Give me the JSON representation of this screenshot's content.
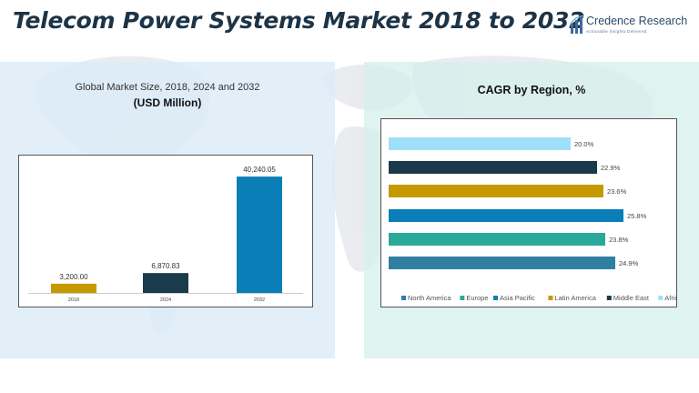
{
  "page": {
    "title": "Telecom Power Systems Market 2018 to 2032"
  },
  "logo": {
    "name": "Credence Research",
    "tagline": "Actionable Insights Delivered"
  },
  "colors": {
    "gold": "#c49a00",
    "navy": "#1b3a4b",
    "blue": "#0a7eb6",
    "teal": "#2aa89a",
    "steel": "#2f7fa3",
    "lightblue": "#9fe0f8"
  },
  "chart_data": [
    {
      "type": "bar",
      "title": "Global Market Size, 2018, 2024 and 2032",
      "subtitle": "(USD Million)",
      "categories": [
        "2018",
        "2024",
        "2032"
      ],
      "values": [
        3200.0,
        6870.83,
        40240.05
      ],
      "value_labels": [
        "3,200.00",
        "6,870.83",
        "40,240.05"
      ],
      "bar_colors": [
        "#c49a00",
        "#1b3a4b",
        "#0a7eb6"
      ],
      "ylim": [
        0,
        45000
      ],
      "grid": false
    },
    {
      "type": "bar",
      "orientation": "horizontal",
      "title": "CAGR by Region, %",
      "categories": [
        "Africa",
        "Middle East",
        "Latin America",
        "Asia Pacific",
        "Europe",
        "North America"
      ],
      "values": [
        20.0,
        22.9,
        23.6,
        25.8,
        23.8,
        24.9
      ],
      "value_labels": [
        "20.0%",
        "22.9%",
        "23.6%",
        "25.8%",
        "23.8%",
        "24.9%"
      ],
      "bar_colors": [
        "#9fe0f8",
        "#1b3a4b",
        "#c49a00",
        "#0a7eb6",
        "#2aa89a",
        "#2f7fa3"
      ],
      "xlim": [
        0,
        28
      ],
      "legend": {
        "placement": "bottom",
        "entries": [
          {
            "label": "North America",
            "color": "#2f7fa3"
          },
          {
            "label": "Europe",
            "color": "#2aa89a"
          },
          {
            "label": "Asia Pacific",
            "color": "#0a7eb6"
          },
          {
            "label": "Latin America",
            "color": "#c49a00"
          },
          {
            "label": "Middle East",
            "color": "#1b3a4b"
          },
          {
            "label": "Africa",
            "color": "#9fe0f8"
          }
        ]
      },
      "grid": false
    }
  ]
}
